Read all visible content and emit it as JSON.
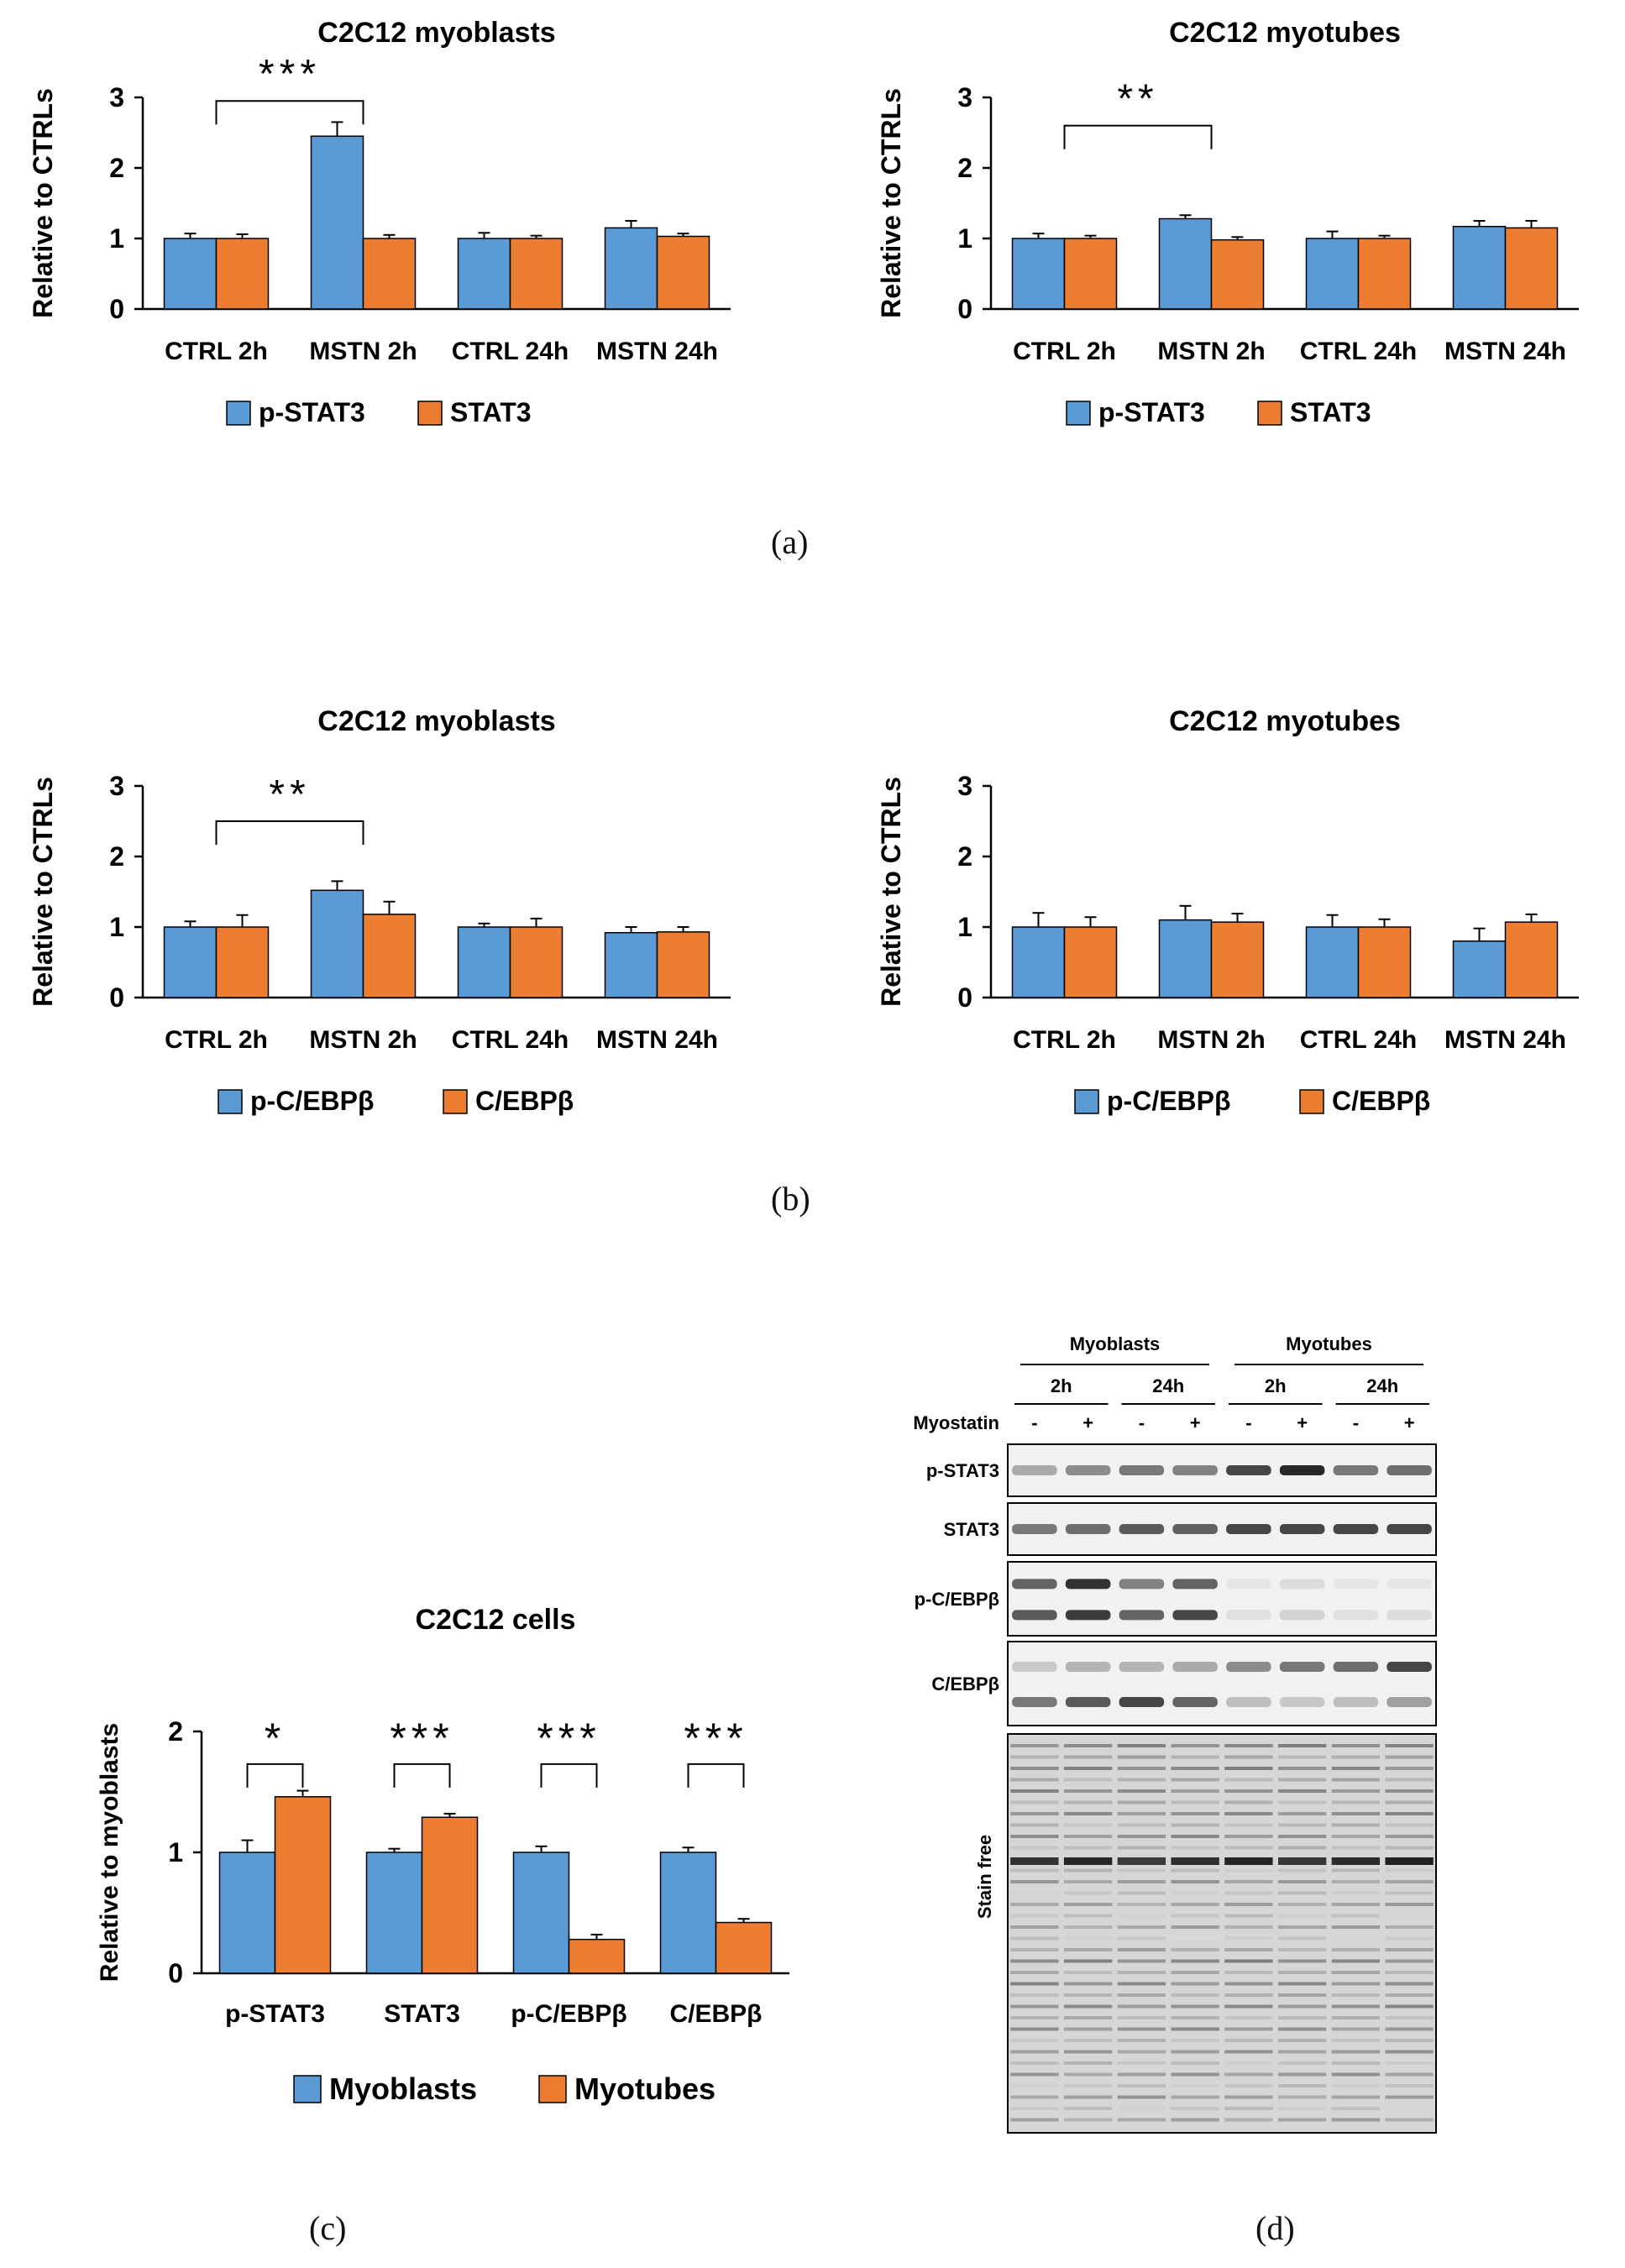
{
  "colors": {
    "blue": "#5b9bd5",
    "orange": "#ed7d31",
    "axis": "#000000",
    "errorbar": "#000000"
  },
  "panel_labels": {
    "a": "(a)",
    "b": "(b)",
    "c": "(c)",
    "d": "(d)"
  },
  "chart_data": [
    {
      "id": "a_left",
      "type": "bar",
      "title": "C2C12 myoblasts",
      "ylabel": "Relative to CTRLs",
      "xlabel": "",
      "ylim": [
        0,
        3
      ],
      "yticks": [
        "0",
        "1",
        "2",
        "3"
      ],
      "categories": [
        "CTRL 2h",
        "MSTN 2h",
        "CTRL 24h",
        "MSTN 24h"
      ],
      "series": [
        {
          "name": "p-STAT3",
          "color": "#5b9bd5",
          "values": [
            1.0,
            2.45,
            1.0,
            1.15
          ],
          "errors": [
            0.07,
            0.2,
            0.08,
            0.1
          ]
        },
        {
          "name": "STAT3",
          "color": "#ed7d31",
          "values": [
            1.0,
            1.0,
            1.0,
            1.03
          ],
          "errors": [
            0.06,
            0.05,
            0.04,
            0.04
          ]
        }
      ],
      "significance": [
        {
          "label": "***",
          "from": 0,
          "to": 1,
          "y": 2.95
        }
      ]
    },
    {
      "id": "a_right",
      "type": "bar",
      "title": "C2C12 myotubes",
      "ylabel": "Relative to CTRLs",
      "xlabel": "",
      "ylim": [
        0,
        3
      ],
      "yticks": [
        "0",
        "1",
        "2",
        "3"
      ],
      "categories": [
        "CTRL 2h",
        "MSTN 2h",
        "CTRL 24h",
        "MSTN 24h"
      ],
      "series": [
        {
          "name": "p-STAT3",
          "color": "#5b9bd5",
          "values": [
            1.0,
            1.28,
            1.0,
            1.17
          ],
          "errors": [
            0.07,
            0.05,
            0.1,
            0.08
          ]
        },
        {
          "name": "STAT3",
          "color": "#ed7d31",
          "values": [
            1.0,
            0.98,
            1.0,
            1.15
          ],
          "errors": [
            0.04,
            0.04,
            0.04,
            0.1
          ]
        }
      ],
      "significance": [
        {
          "label": "**",
          "from": 0,
          "to": 1,
          "y": 2.6
        }
      ]
    },
    {
      "id": "b_left",
      "type": "bar",
      "title": "C2C12 myoblasts",
      "ylabel": "Relative to CTRLs",
      "xlabel": "",
      "ylim": [
        0,
        3
      ],
      "yticks": [
        "0",
        "1",
        "2",
        "3"
      ],
      "categories": [
        "CTRL 2h",
        "MSTN 2h",
        "CTRL 24h",
        "MSTN 24h"
      ],
      "series": [
        {
          "name": "p-C/EBPβ",
          "color": "#5b9bd5",
          "values": [
            1.0,
            1.52,
            1.0,
            0.92
          ],
          "errors": [
            0.08,
            0.13,
            0.05,
            0.08
          ]
        },
        {
          "name": "C/EBPβ",
          "color": "#ed7d31",
          "values": [
            1.0,
            1.18,
            1.0,
            0.93
          ],
          "errors": [
            0.17,
            0.18,
            0.12,
            0.07
          ]
        }
      ],
      "significance": [
        {
          "label": "**",
          "from": 0,
          "to": 1,
          "y": 2.5
        }
      ]
    },
    {
      "id": "b_right",
      "type": "bar",
      "title": "C2C12 myotubes",
      "ylabel": "Relative to CTRLs",
      "xlabel": "",
      "ylim": [
        0,
        3
      ],
      "yticks": [
        "0",
        "1",
        "2",
        "3"
      ],
      "categories": [
        "CTRL 2h",
        "MSTN 2h",
        "CTRL 24h",
        "MSTN 24h"
      ],
      "series": [
        {
          "name": "p-C/EBPβ",
          "color": "#5b9bd5",
          "values": [
            1.0,
            1.1,
            1.0,
            0.8
          ],
          "errors": [
            0.2,
            0.2,
            0.17,
            0.18
          ]
        },
        {
          "name": "C/EBPβ",
          "color": "#ed7d31",
          "values": [
            1.0,
            1.07,
            1.0,
            1.07
          ],
          "errors": [
            0.14,
            0.12,
            0.11,
            0.11
          ]
        }
      ],
      "significance": []
    },
    {
      "id": "c",
      "type": "bar",
      "title": "C2C12 cells",
      "ylabel": "Relative to myoblasts",
      "xlabel": "",
      "ylim": [
        0,
        2
      ],
      "yticks": [
        "0",
        "1",
        "2"
      ],
      "categories": [
        "p-STAT3",
        "STAT3",
        "p-C/EBPβ",
        "C/EBPβ"
      ],
      "series": [
        {
          "name": "Myoblasts",
          "color": "#5b9bd5",
          "values": [
            1.0,
            1.0,
            1.0,
            1.0
          ],
          "errors": [
            0.1,
            0.03,
            0.05,
            0.04
          ]
        },
        {
          "name": "Myotubes",
          "color": "#ed7d31",
          "values": [
            1.46,
            1.29,
            0.28,
            0.42
          ],
          "errors": [
            0.05,
            0.03,
            0.04,
            0.03
          ]
        }
      ],
      "significance": [
        {
          "label": "*",
          "from": 0,
          "to": 0,
          "y": 1.73
        },
        {
          "label": "***",
          "from": 1,
          "to": 1,
          "y": 1.73
        },
        {
          "label": "***",
          "from": 2,
          "to": 2,
          "y": 1.73
        },
        {
          "label": "***",
          "from": 3,
          "to": 3,
          "y": 1.73
        }
      ]
    }
  ],
  "blot": {
    "groups": [
      "Myoblasts",
      "Myotubes"
    ],
    "times": [
      "2h",
      "24h",
      "2h",
      "24h"
    ],
    "treatment_label": "Myostatin",
    "lane_signs": [
      "-",
      "+",
      "-",
      "+",
      "-",
      "+",
      "-",
      "+"
    ],
    "rows": [
      "p-STAT3",
      "STAT3",
      "p-C/EBPβ",
      "C/EBPβ",
      "Stain free"
    ],
    "band_intensity": {
      "p-STAT3": [
        0.35,
        0.5,
        0.6,
        0.55,
        0.85,
        1.0,
        0.6,
        0.65
      ],
      "STAT3": [
        0.6,
        0.65,
        0.75,
        0.72,
        0.85,
        0.85,
        0.85,
        0.85
      ],
      "p-C/EBPβ_upper": [
        0.7,
        0.95,
        0.55,
        0.7,
        0.05,
        0.1,
        0.05,
        0.05
      ],
      "p-C/EBPβ_lower": [
        0.75,
        0.9,
        0.7,
        0.85,
        0.08,
        0.15,
        0.08,
        0.1
      ],
      "C/EBPβ_upper": [
        0.2,
        0.3,
        0.3,
        0.35,
        0.5,
        0.6,
        0.65,
        0.85
      ],
      "C/EBPβ_lower": [
        0.6,
        0.75,
        0.85,
        0.7,
        0.25,
        0.2,
        0.25,
        0.4
      ]
    }
  }
}
